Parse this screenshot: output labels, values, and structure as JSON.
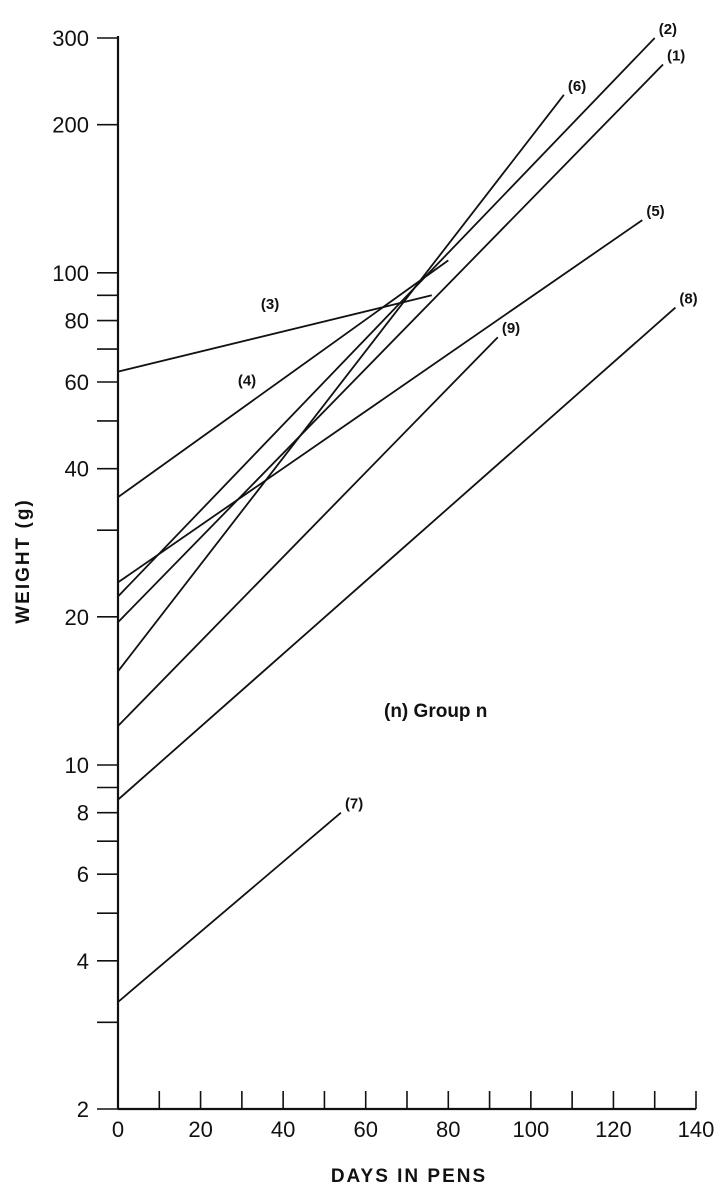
{
  "chart_data": {
    "type": "line",
    "xlabel": "DAYS IN PENS",
    "ylabel": "WEIGHT (g)",
    "xlim": [
      0,
      140
    ],
    "ylim": [
      2,
      300
    ],
    "y_scale": "log",
    "grid": false,
    "legend": "center-right",
    "x_ticks": [
      0,
      10,
      20,
      30,
      40,
      50,
      60,
      70,
      80,
      90,
      100,
      110,
      120,
      130,
      140
    ],
    "x_tick_labels": [
      "0",
      "",
      "20",
      "",
      "40",
      "",
      "60",
      "",
      "80",
      "",
      "100",
      "",
      "120",
      "",
      "140"
    ],
    "y_ticks": [
      2,
      3,
      4,
      5,
      6,
      7,
      8,
      9,
      10,
      20,
      30,
      40,
      50,
      60,
      70,
      80,
      90,
      100,
      200,
      300
    ],
    "y_tick_labels": [
      "2",
      "",
      "4",
      "",
      "6",
      "",
      "8",
      "",
      "10",
      "20",
      "",
      "40",
      "",
      "60",
      "",
      "80",
      "",
      "100",
      "200",
      "300"
    ],
    "legend_text": "(n) Group n",
    "series": [
      {
        "name": "(1)",
        "x": [
          0,
          132
        ],
        "y": [
          19.5,
          265
        ]
      },
      {
        "name": "(2)",
        "x": [
          0,
          130
        ],
        "y": [
          22,
          300
        ]
      },
      {
        "name": "(3)",
        "x": [
          0,
          76
        ],
        "y": [
          63,
          90
        ]
      },
      {
        "name": "(4)",
        "x": [
          0,
          80
        ],
        "y": [
          35,
          106
        ]
      },
      {
        "name": "(5)",
        "x": [
          0,
          127
        ],
        "y": [
          23.5,
          128
        ]
      },
      {
        "name": "(6)",
        "x": [
          0,
          108
        ],
        "y": [
          15.5,
          230
        ]
      },
      {
        "name": "(7)",
        "x": [
          0,
          54
        ],
        "y": [
          3.3,
          8
        ]
      },
      {
        "name": "(8)",
        "x": [
          0,
          135
        ],
        "y": [
          8.5,
          85
        ]
      },
      {
        "name": "(9)",
        "x": [
          0,
          92
        ],
        "y": [
          12,
          74
        ]
      }
    ]
  }
}
